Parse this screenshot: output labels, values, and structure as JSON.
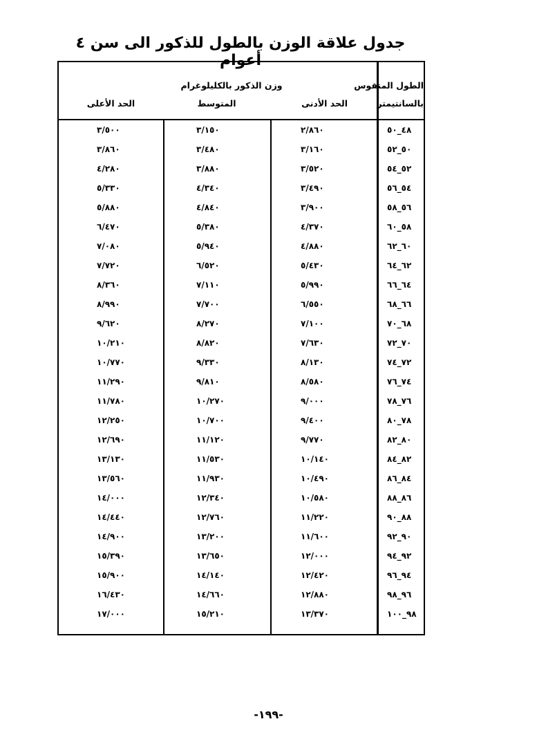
{
  "title": "جدول علاقة الوزن بالطول للذكور الى سن ٤ أعوام",
  "headers": {
    "length_line1": "الطول المتقوس",
    "length_line2": "بالسانتيمتر",
    "weight_group": "وزن الذكور بالكليلوغرام",
    "min": "الحد الأدنى",
    "avg": "المتوسط",
    "max": "الحد الأعلى"
  },
  "rows": [
    {
      "length": "٤٨_٥٠",
      "min": "٢/٨٦٠",
      "avg": "٣/١٥٠",
      "max": "٣/٥٠٠"
    },
    {
      "length": "٥٠_٥٢",
      "min": "٣/١٦٠",
      "avg": "٣/٤٨٠",
      "max": "٣/٨٦٠"
    },
    {
      "length": "٥٢_٥٤",
      "min": "٣/٥٢٠",
      "avg": "٣/٨٨٠",
      "max": "٤/٢٨٠"
    },
    {
      "length": "٥٤_٥٦",
      "min": "٣/٤٩٠",
      "avg": "٤/٣٤٠",
      "max": "٥/٣٣٠"
    },
    {
      "length": "٥٦_٥٨",
      "min": "٣/٩٠٠",
      "avg": "٤/٨٤٠",
      "max": "٥/٨٨٠"
    },
    {
      "length": "٥٨_٦٠",
      "min": "٤/٣٧٠",
      "avg": "٥/٣٨٠",
      "max": "٦/٤٧٠"
    },
    {
      "length": "٦٠_٦٢",
      "min": "٤/٨٨٠",
      "avg": "٥/٩٤٠",
      "max": "٧/٠٨٠"
    },
    {
      "length": "٦٢_٦٤",
      "min": "٥/٤٣٠",
      "avg": "٦/٥٢٠",
      "max": "٧/٧٢٠"
    },
    {
      "length": "٦٤_٦٦",
      "min": "٥/٩٩٠",
      "avg": "٧/١١٠",
      "max": "٨/٣٦٠"
    },
    {
      "length": "٦٦_٦٨",
      "min": "٦/٥٥٠",
      "avg": "٧/٧٠٠",
      "max": "٨/٩٩٠"
    },
    {
      "length": "٦٨_٧٠",
      "min": "٧/١٠٠",
      "avg": "٨/٢٧٠",
      "max": "٩/٦٢٠"
    },
    {
      "length": "٧٠_٧٢",
      "min": "٧/٦٣٠",
      "avg": "٨/٨٢٠",
      "max": "١٠/٢١٠"
    },
    {
      "length": "٧٢_٧٤",
      "min": "٨/١٣٠",
      "avg": "٩/٣٣٠",
      "max": "١٠/٧٧٠"
    },
    {
      "length": "٧٤_٧٦",
      "min": "٨/٥٨٠",
      "avg": "٩/٨١٠",
      "max": "١١/٢٩٠"
    },
    {
      "length": "٧٦_٧٨",
      "min": "٩/٠٠٠",
      "avg": "١٠/٢٧٠",
      "max": "١١/٧٨٠"
    },
    {
      "length": "٧٨_٨٠",
      "min": "٩/٤٠٠",
      "avg": "١٠/٧٠٠",
      "max": "١٢/٢٥٠"
    },
    {
      "length": "٨٠_٨٢",
      "min": "٩/٧٧٠",
      "avg": "١١/١٢٠",
      "max": "١٢/٦٩٠"
    },
    {
      "length": "٨٢_٨٤",
      "min": "١٠/١٤٠",
      "avg": "١١/٥٣٠",
      "max": "١٣/١٣٠"
    },
    {
      "length": "٨٤_٨٦",
      "min": "١٠/٤٩٠",
      "avg": "١١/٩٣٠",
      "max": "١٣/٥٦٠"
    },
    {
      "length": "٨٦_٨٨",
      "min": "١٠/٥٨٠",
      "avg": "١٢/٣٤٠",
      "max": "١٤/٠٠٠"
    },
    {
      "length": "٨٨_٩٠",
      "min": "١١/٢٢٠",
      "avg": "١٢/٧٦٠",
      "max": "١٤/٤٤٠"
    },
    {
      "length": "٩٠_٩٢",
      "min": "١١/٦٠٠",
      "avg": "١٣/٢٠٠",
      "max": "١٤/٩٠٠"
    },
    {
      "length": "٩٢_٩٤",
      "min": "١٢/٠٠٠",
      "avg": "١٣/٦٥٠",
      "max": "١٥/٣٩٠"
    },
    {
      "length": "٩٤_٩٦",
      "min": "١٢/٤٢٠",
      "avg": "١٤/١٤٠",
      "max": "١٥/٩٠٠"
    },
    {
      "length": "٩٦_٩٨",
      "min": "١٢/٨٨٠",
      "avg": "١٤/٦٦٠",
      "max": "١٦/٤٣٠"
    },
    {
      "length": "٩٨_١٠٠",
      "min": "١٣/٣٧٠",
      "avg": "١٥/٢١٠",
      "max": "١٧/٠٠٠"
    }
  ],
  "page_number": "-١٩٩-"
}
